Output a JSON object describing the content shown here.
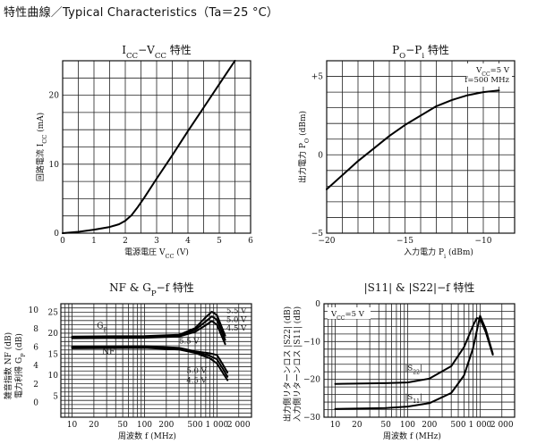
{
  "sheet": {
    "title": "特性曲線／Typical Characteristics（Ta＝25 °C）"
  },
  "chart_data": [
    {
      "id": "icc",
      "type": "line",
      "title": "I_CC−V_CC 特性",
      "xlabel": "電源電圧 V_CC (V)",
      "ylabel": "回路電流 I_CC (mA)",
      "xlim": [
        0,
        6
      ],
      "ylim": [
        0,
        25
      ],
      "x_ticks": [
        0,
        1,
        2,
        3,
        4,
        5,
        6
      ],
      "y_ticks": [
        0,
        10,
        20
      ],
      "grid": true,
      "series": [
        {
          "x": [
            0,
            0.5,
            1.0,
            1.5,
            1.8,
            2.0,
            2.2,
            2.4,
            2.6,
            3.0,
            3.5,
            4.0,
            4.5,
            5.0,
            5.5
          ],
          "y": [
            0,
            0.2,
            0.5,
            0.9,
            1.3,
            1.8,
            2.6,
            3.8,
            5.1,
            7.9,
            11.3,
            14.8,
            18.2,
            21.6,
            25
          ]
        }
      ]
    },
    {
      "id": "pope",
      "type": "line",
      "title": "P_O−P_i 特性",
      "xlabel": "入力電力 P_i (dBm)",
      "ylabel": "出力電力 P_O (dBm)",
      "xlim": [
        -20,
        -8
      ],
      "ylim": [
        -5,
        6
      ],
      "x_ticks": [
        -20,
        -15,
        -10
      ],
      "y_ticks": [
        -5,
        0,
        5
      ],
      "y_tick_labels": [
        "−5",
        "0",
        "+5"
      ],
      "grid": true,
      "annotations": [
        "V_CC=5 V",
        "f=500 MHz"
      ],
      "series": [
        {
          "x": [
            -20,
            -19,
            -18,
            -17,
            -16,
            -15,
            -14,
            -13,
            -12,
            -11,
            -10,
            -9
          ],
          "y": [
            -2.2,
            -1.3,
            -0.4,
            0.4,
            1.2,
            1.9,
            2.5,
            3.1,
            3.5,
            3.8,
            4.0,
            4.1
          ]
        }
      ]
    },
    {
      "id": "nfgp",
      "type": "line",
      "title": "NF & G_P−f 特性",
      "xlabel": "周波数 f (MHz)",
      "ylabel_outer": "雑音指数 NF (dB)",
      "ylabel_inner": "電力利得 G_P (dB)",
      "x_scale": "log",
      "xlim": [
        7,
        3000
      ],
      "x_ticks": [
        10,
        20,
        50,
        100,
        200,
        500,
        1000,
        2000
      ],
      "x_tick_labels": [
        "10",
        "20",
        "50",
        "100",
        "200",
        "500",
        "1 000",
        "2 000"
      ],
      "ylim_gp": [
        0,
        27
      ],
      "y_ticks_gp": [
        5,
        10,
        15,
        20,
        25
      ],
      "y_ticks_nf": [
        0,
        2,
        4,
        6,
        8,
        10
      ],
      "grid": true,
      "series": [
        {
          "name": "G_P 5.5 V",
          "x": [
            10,
            100,
            300,
            500,
            700,
            850,
            1000,
            1300
          ],
          "y": [
            19.2,
            19.3,
            19.6,
            21.2,
            23.8,
            25.1,
            24.3,
            19.4
          ]
        },
        {
          "name": "G_P 5.0 V",
          "x": [
            10,
            100,
            300,
            500,
            700,
            850,
            1000,
            1300
          ],
          "y": [
            19.0,
            19.1,
            19.4,
            20.8,
            22.8,
            24.0,
            23.2,
            18.4
          ]
        },
        {
          "name": "G_P 4.5 V",
          "x": [
            10,
            100,
            300,
            500,
            700,
            850,
            1000,
            1300
          ],
          "y": [
            18.8,
            18.9,
            19.2,
            20.3,
            21.9,
            22.9,
            22.0,
            17.4
          ]
        },
        {
          "name": "NF 5.5 V",
          "x": [
            10,
            100,
            300,
            500,
            800,
            1000,
            1200,
            1400
          ],
          "y": [
            16.8,
            16.9,
            16.5,
            15.7,
            15.2,
            14.8,
            12.6,
            10.6
          ]
        },
        {
          "name": "NF 5.0 V",
          "x": [
            10,
            100,
            300,
            500,
            800,
            1000,
            1200,
            1400
          ],
          "y": [
            16.6,
            16.7,
            16.3,
            15.5,
            14.6,
            13.8,
            11.6,
            9.6
          ]
        },
        {
          "name": "NF 4.5 V",
          "x": [
            10,
            100,
            300,
            500,
            800,
            1000,
            1200,
            1400
          ],
          "y": [
            16.4,
            16.5,
            16.1,
            15.3,
            14.0,
            12.8,
            10.6,
            8.8
          ]
        }
      ],
      "labels": [
        "G_P",
        "NF",
        "5.5 V",
        "5.0 V",
        "4.5 V",
        "5.5 V",
        "5.0 V",
        "4.5 V"
      ]
    },
    {
      "id": "sparam",
      "type": "line",
      "title": "|S11| & |S22|−f 特性",
      "xlabel": "周波数 f (MHz)",
      "ylabel_outer": "出力側リターンロス |S22| (dB)",
      "ylabel_inner": "入力側リターンロス |S11| (dB)",
      "x_scale": "log",
      "xlim": [
        7,
        3000
      ],
      "x_ticks": [
        10,
        20,
        50,
        100,
        200,
        500,
        1000,
        2000
      ],
      "x_tick_labels": [
        "10",
        "20",
        "50",
        "100",
        "200",
        "500",
        "1 000",
        "2 000"
      ],
      "ylim": [
        -30,
        0
      ],
      "y_ticks": [
        -30,
        -20,
        -10,
        0
      ],
      "grid": true,
      "annotations": [
        "V_CC=5 V"
      ],
      "series": [
        {
          "name": "|S22|",
          "x": [
            10,
            50,
            100,
            200,
            400,
            600,
            800,
            900,
            1000,
            1200,
            1500
          ],
          "y": [
            -21.2,
            -21.0,
            -20.8,
            -19.8,
            -16.5,
            -11.5,
            -5.8,
            -3.8,
            -4.0,
            -7.5,
            -13.5
          ]
        },
        {
          "name": "|S11|",
          "x": [
            10,
            50,
            100,
            200,
            400,
            600,
            800,
            1000,
            1200,
            1500
          ],
          "y": [
            -27.8,
            -27.6,
            -27.2,
            -26.3,
            -23.6,
            -19.0,
            -11.8,
            -3.2,
            -6.8,
            -13.2
          ]
        }
      ]
    }
  ]
}
